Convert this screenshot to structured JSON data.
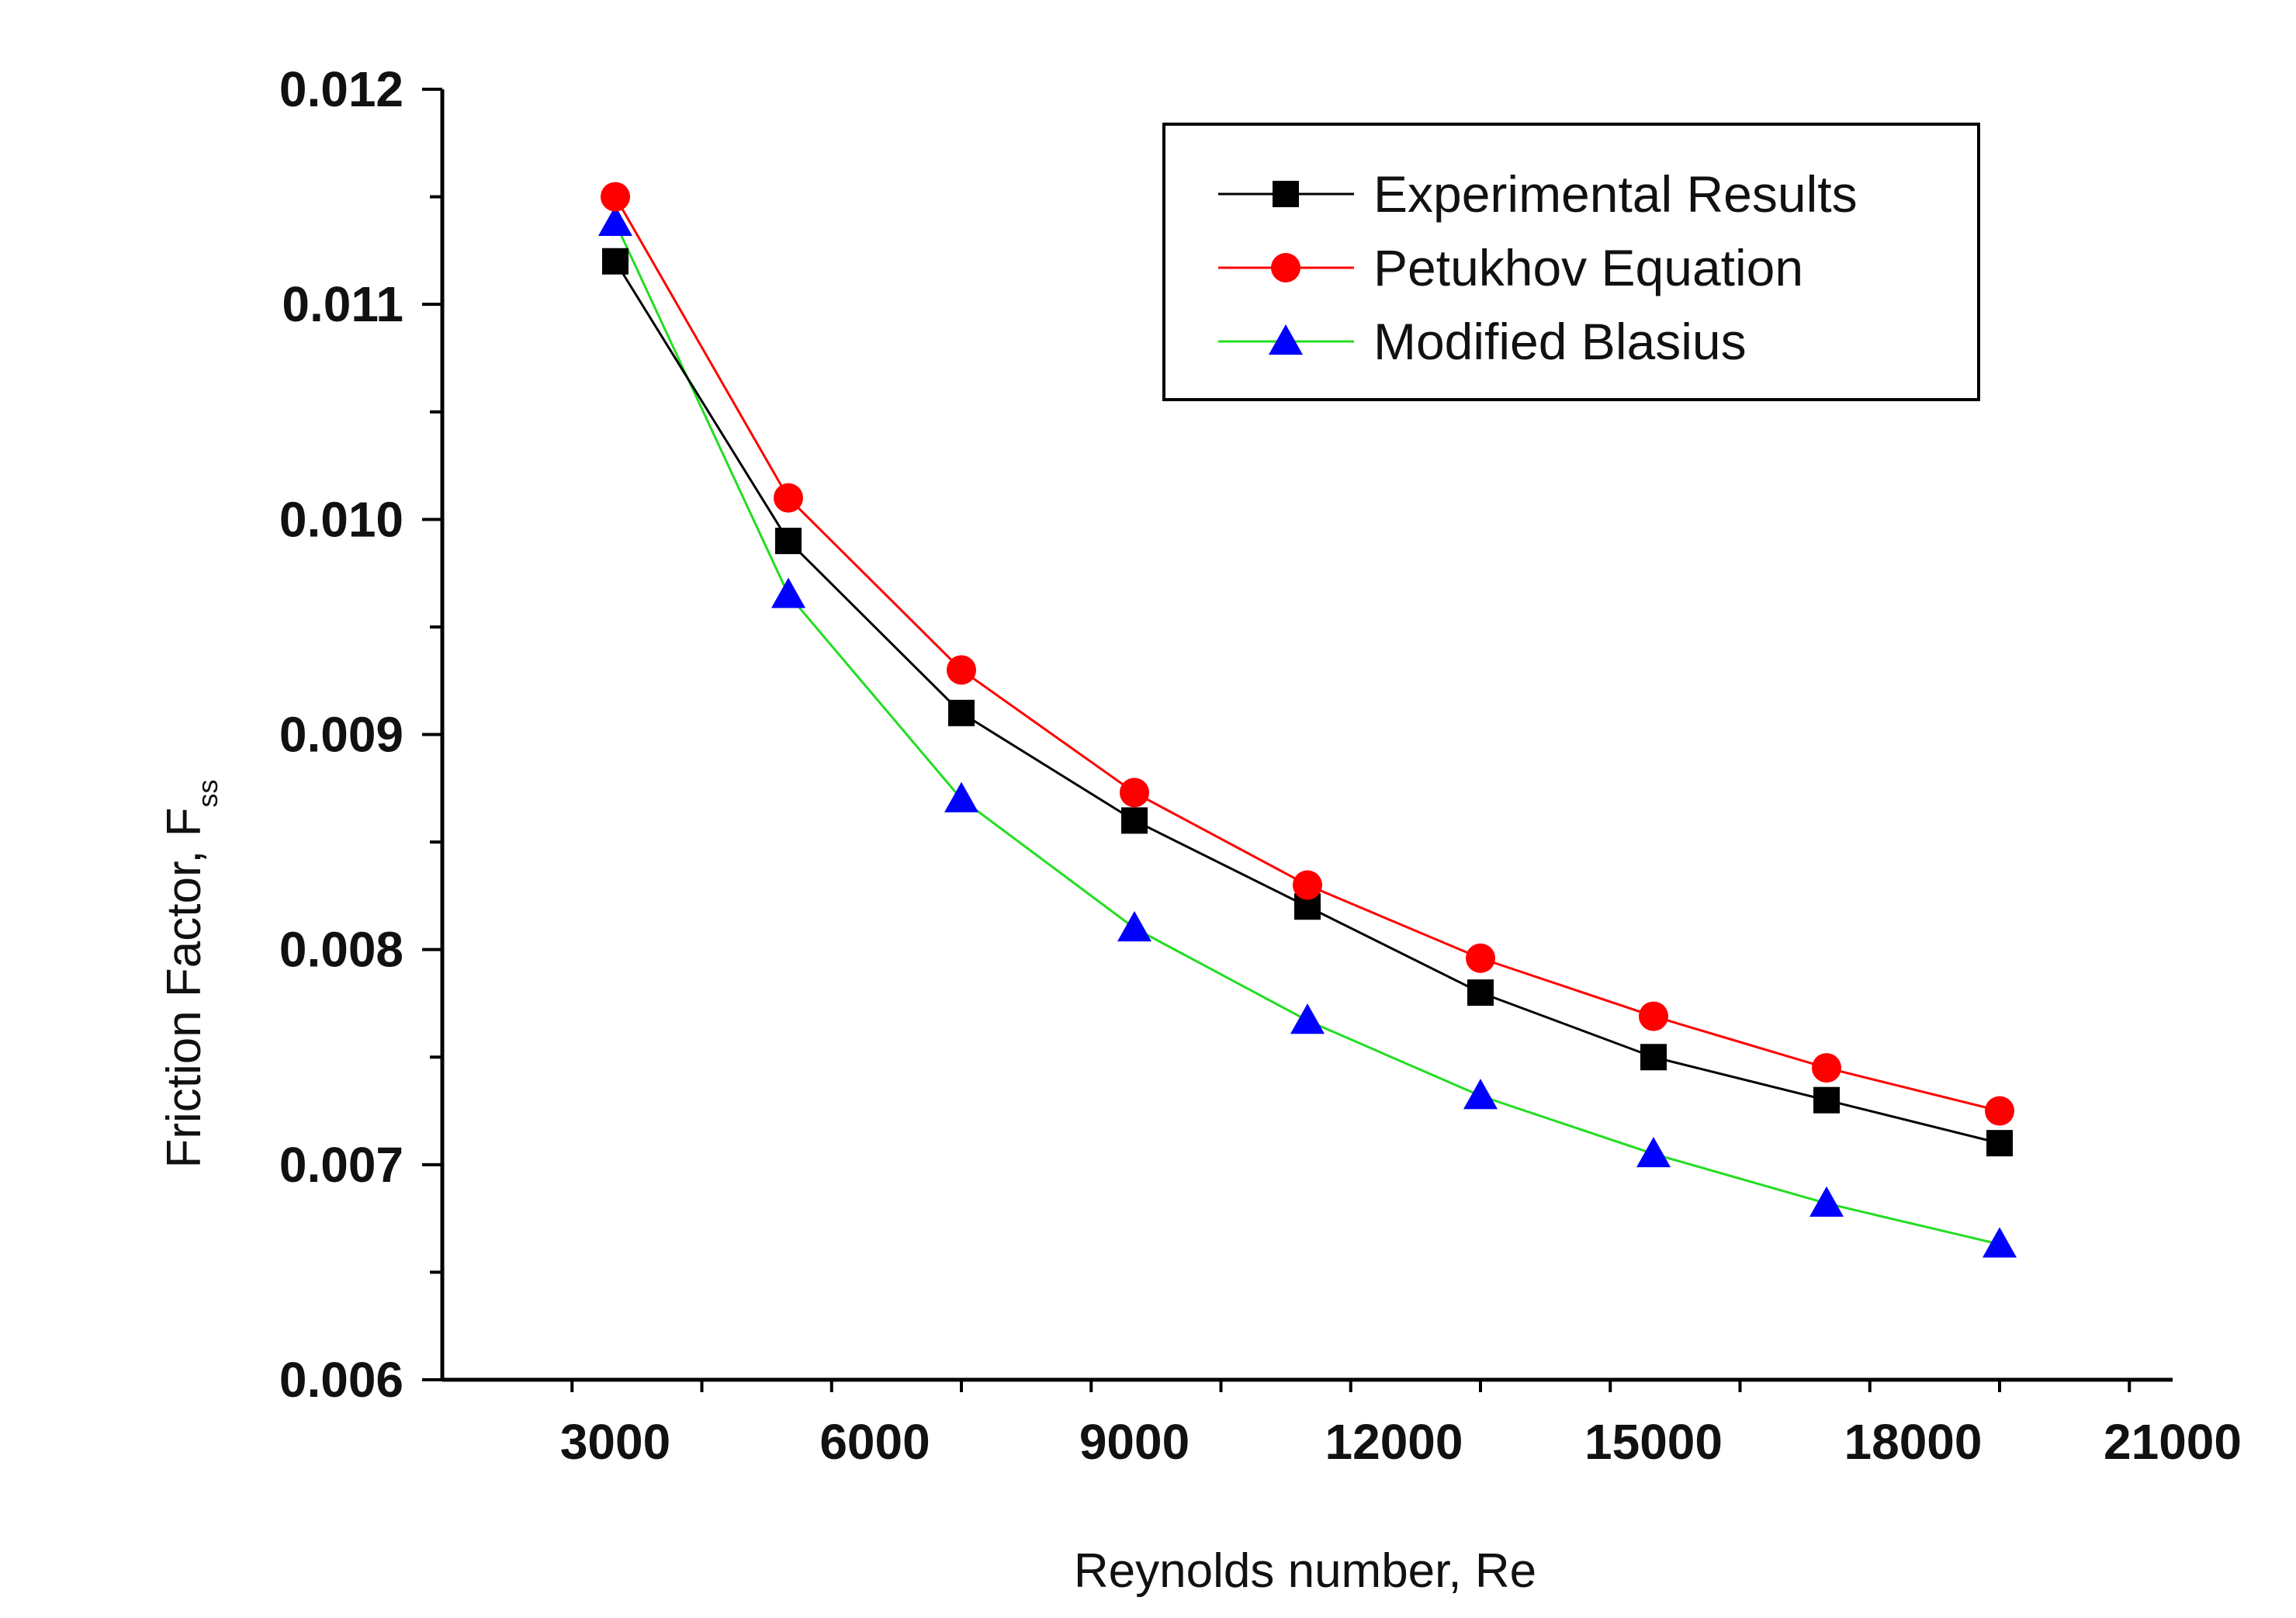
{
  "chart_data": {
    "type": "line",
    "title": "",
    "xlabel": "Reynolds number, Re",
    "ylabel": "Friction Factor, F",
    "ylabel_subscript": "ss",
    "xlim": [
      1000,
      21000
    ],
    "ylim": [
      0.006,
      0.012
    ],
    "x_ticks": [
      3000,
      6000,
      9000,
      12000,
      15000,
      18000,
      21000
    ],
    "x_tick_labels": [
      "3000",
      "6000",
      "9000",
      "12000",
      "15000",
      "18000",
      "21000"
    ],
    "y_ticks": [
      0.006,
      0.007,
      0.008,
      0.009,
      0.01,
      0.011,
      0.012
    ],
    "y_tick_labels": [
      "0.006",
      "0.007",
      "0.008",
      "0.009",
      "0.010",
      "0.011",
      "0.012"
    ],
    "grid": false,
    "legend_position": "top-right",
    "x": [
      3000,
      5000,
      7000,
      9000,
      11000,
      13000,
      15000,
      17000,
      19000
    ],
    "series": [
      {
        "name": "Experimental Results",
        "marker": "square",
        "line_color": "#000000",
        "marker_color": "#000000",
        "values": [
          0.0112,
          0.0099,
          0.0091,
          0.0086,
          0.0082,
          0.0078,
          0.0075,
          0.0073,
          0.0071
        ]
      },
      {
        "name": "Petukhov Equation",
        "marker": "circle",
        "line_color": "#ff0000",
        "marker_color": "#ff0000",
        "values": [
          0.0115,
          0.0101,
          0.0093,
          0.00873,
          0.0083,
          0.00796,
          0.00769,
          0.00745,
          0.00725
        ]
      },
      {
        "name": "Modified Blasius",
        "marker": "triangle",
        "line_color": "#22dd22",
        "marker_color": "#0000ff",
        "values": [
          0.01138,
          0.00965,
          0.0087,
          0.0081,
          0.00767,
          0.00732,
          0.00705,
          0.00682,
          0.00663
        ]
      }
    ]
  }
}
